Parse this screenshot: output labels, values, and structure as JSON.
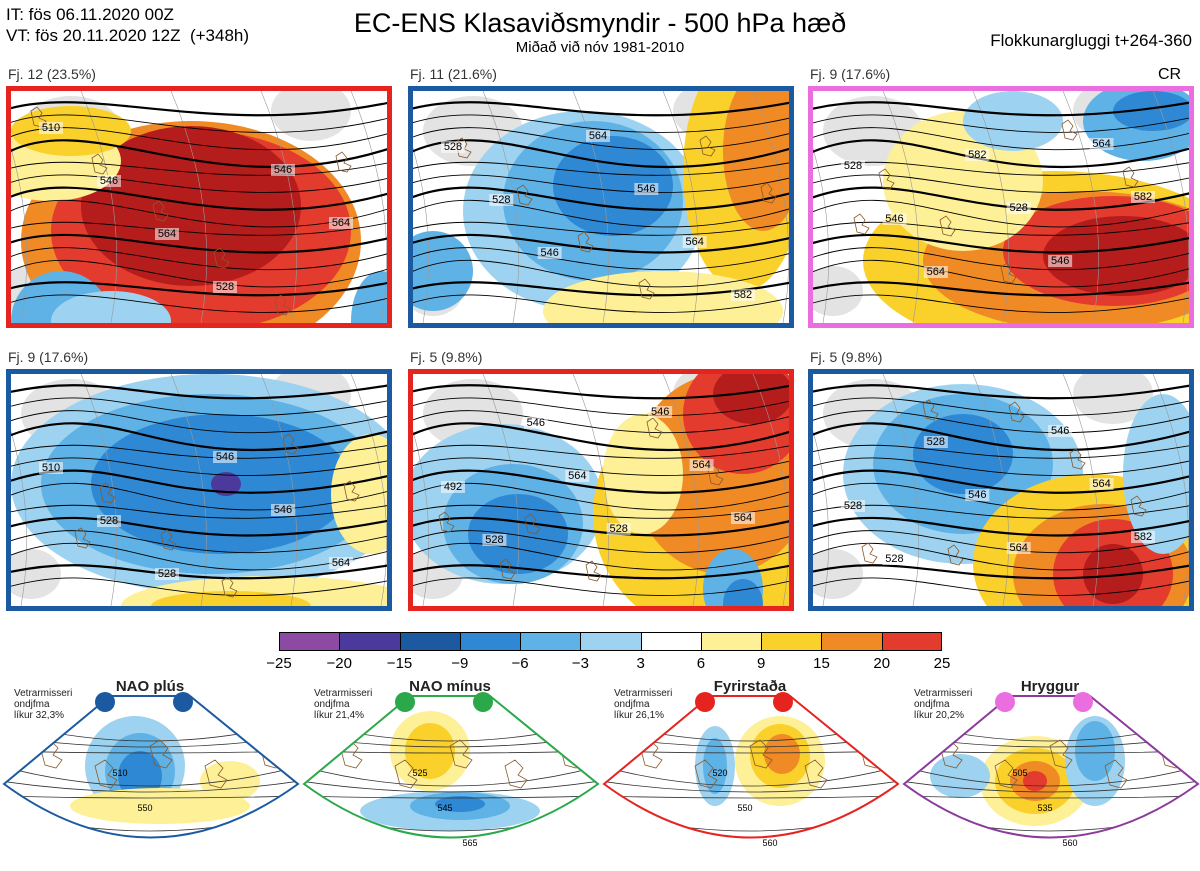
{
  "header": {
    "it": "IT: fös 06.11.2020 00Z",
    "vt": "VT: fös 20.11.2020 12Z  (+348h)",
    "title": "EC-ENS Klasaviðsmyndir - 500 hPa hæð",
    "subtitle": "Miðað við nóv 1981-2010",
    "window": "Flokkunargluggi t+264-360",
    "cr": "CR"
  },
  "panels": [
    {
      "label": "Fj. 12 (23.5%)",
      "border": "#e52420",
      "contours": [
        "510",
        "546",
        "564",
        "528",
        "546",
        "564"
      ],
      "pattern": "ridge"
    },
    {
      "label": "Fj. 11 (21.6%)",
      "border": "#1b5aa0",
      "contours": [
        "528",
        "528",
        "546",
        "564",
        "546",
        "564",
        "582"
      ],
      "pattern": "trough"
    },
    {
      "label": "Fj. 9 (17.6%)",
      "border": "#ea6ee0",
      "contours": [
        "528",
        "546",
        "564",
        "582",
        "528",
        "546",
        "564",
        "582"
      ],
      "pattern": "southridge"
    },
    {
      "label": "Fj. 9 (17.6%)",
      "border": "#1b5aa0",
      "contours": [
        "510",
        "528",
        "528",
        "546",
        "546",
        "564"
      ],
      "pattern": "deeptrough"
    },
    {
      "label": "Fj. 5 (9.8%)",
      "border": "#e52420",
      "contours": [
        "492",
        "528",
        "546",
        "564",
        "528",
        "546",
        "564",
        "564"
      ],
      "pattern": "dipole"
    },
    {
      "label": "Fj. 5 (9.8%)",
      "border": "#1b5aa0",
      "contours": [
        "528",
        "528",
        "528",
        "546",
        "564",
        "546",
        "564",
        "582"
      ],
      "pattern": "sedipole"
    }
  ],
  "colorbar": {
    "ticks": [
      "−25",
      "−20",
      "−15",
      "−9",
      "−6",
      "−3",
      "3",
      "6",
      "9",
      "15",
      "20",
      "25"
    ],
    "colors": [
      "#8c4aa3",
      "#4b3a9c",
      "#1b5aa0",
      "#2f88d3",
      "#5fb2e6",
      "#9dd3f0",
      "#ffffff",
      "#fdf097",
      "#fad12b",
      "#f08a25",
      "#e43b2f",
      "#b51c1c"
    ]
  },
  "chart_data": {
    "type": "heatmap",
    "title": "EC-ENS Klasaviðsmyndir - 500 hPa hæð",
    "subtitle": "Miðað við nóv 1981-2010",
    "colorbar_ticks": [
      -25,
      -20,
      -15,
      -9,
      -6,
      -3,
      3,
      6,
      9,
      15,
      20,
      25
    ],
    "panels": [
      {
        "label": "Fj. 12 (23.5%)",
        "members": 12,
        "percent": 23.5
      },
      {
        "label": "Fj. 11 (21.6%)",
        "members": 11,
        "percent": 21.6
      },
      {
        "label": "Fj. 9 (17.6%)",
        "members": 9,
        "percent": 17.6
      },
      {
        "label": "Fj. 9 (17.6%)",
        "members": 9,
        "percent": 17.6
      },
      {
        "label": "Fj. 5 (9.8%)",
        "members": 5,
        "percent": 9.8
      },
      {
        "label": "Fj. 5 (9.8%)",
        "members": 5,
        "percent": 9.8
      }
    ],
    "regimes": [
      {
        "name": "NAO plús",
        "probability": "32,3%",
        "contours": [
          "510",
          "550"
        ]
      },
      {
        "name": "NAO mínus",
        "probability": "21,4%",
        "contours": [
          "525",
          "545",
          "565"
        ]
      },
      {
        "name": "Fyrirstaða",
        "probability": "26,1%",
        "contours": [
          "520",
          "550",
          "560"
        ]
      },
      {
        "name": "Hryggur",
        "probability": "20,2%",
        "contours": [
          "505",
          "535",
          "560"
        ]
      }
    ]
  },
  "regimes": [
    {
      "title": "NAO plús",
      "note": [
        "Vetrarmisseri",
        "ondjfma",
        "líkur 32,3%"
      ],
      "color": "#1b5aa0",
      "dot": "#1b5aa0",
      "labels": [
        "510",
        "550"
      ],
      "kind": "naoplus"
    },
    {
      "title": "NAO mínus",
      "note": [
        "Vetrarmisseri",
        "ondjfma",
        "líkur 21,4%"
      ],
      "color": "#2aa84a",
      "dot": "#2aa84a",
      "labels": [
        "525",
        "545",
        "565"
      ],
      "kind": "naominus"
    },
    {
      "title": "Fyrirstaða",
      "note": [
        "Vetrarmisseri",
        "ondjfma",
        "líkur 26,1%"
      ],
      "color": "#e52420",
      "dot": "#e52420",
      "labels": [
        "520",
        "550",
        "560"
      ],
      "kind": "block"
    },
    {
      "title": "Hryggur",
      "note": [
        "Vetrarmisseri",
        "ondjfma",
        "líkur 20,2%"
      ],
      "color": "#8c3a9c",
      "dot": "#ea6ee0",
      "labels": [
        "505",
        "535",
        "560"
      ],
      "kind": "ridge"
    }
  ]
}
